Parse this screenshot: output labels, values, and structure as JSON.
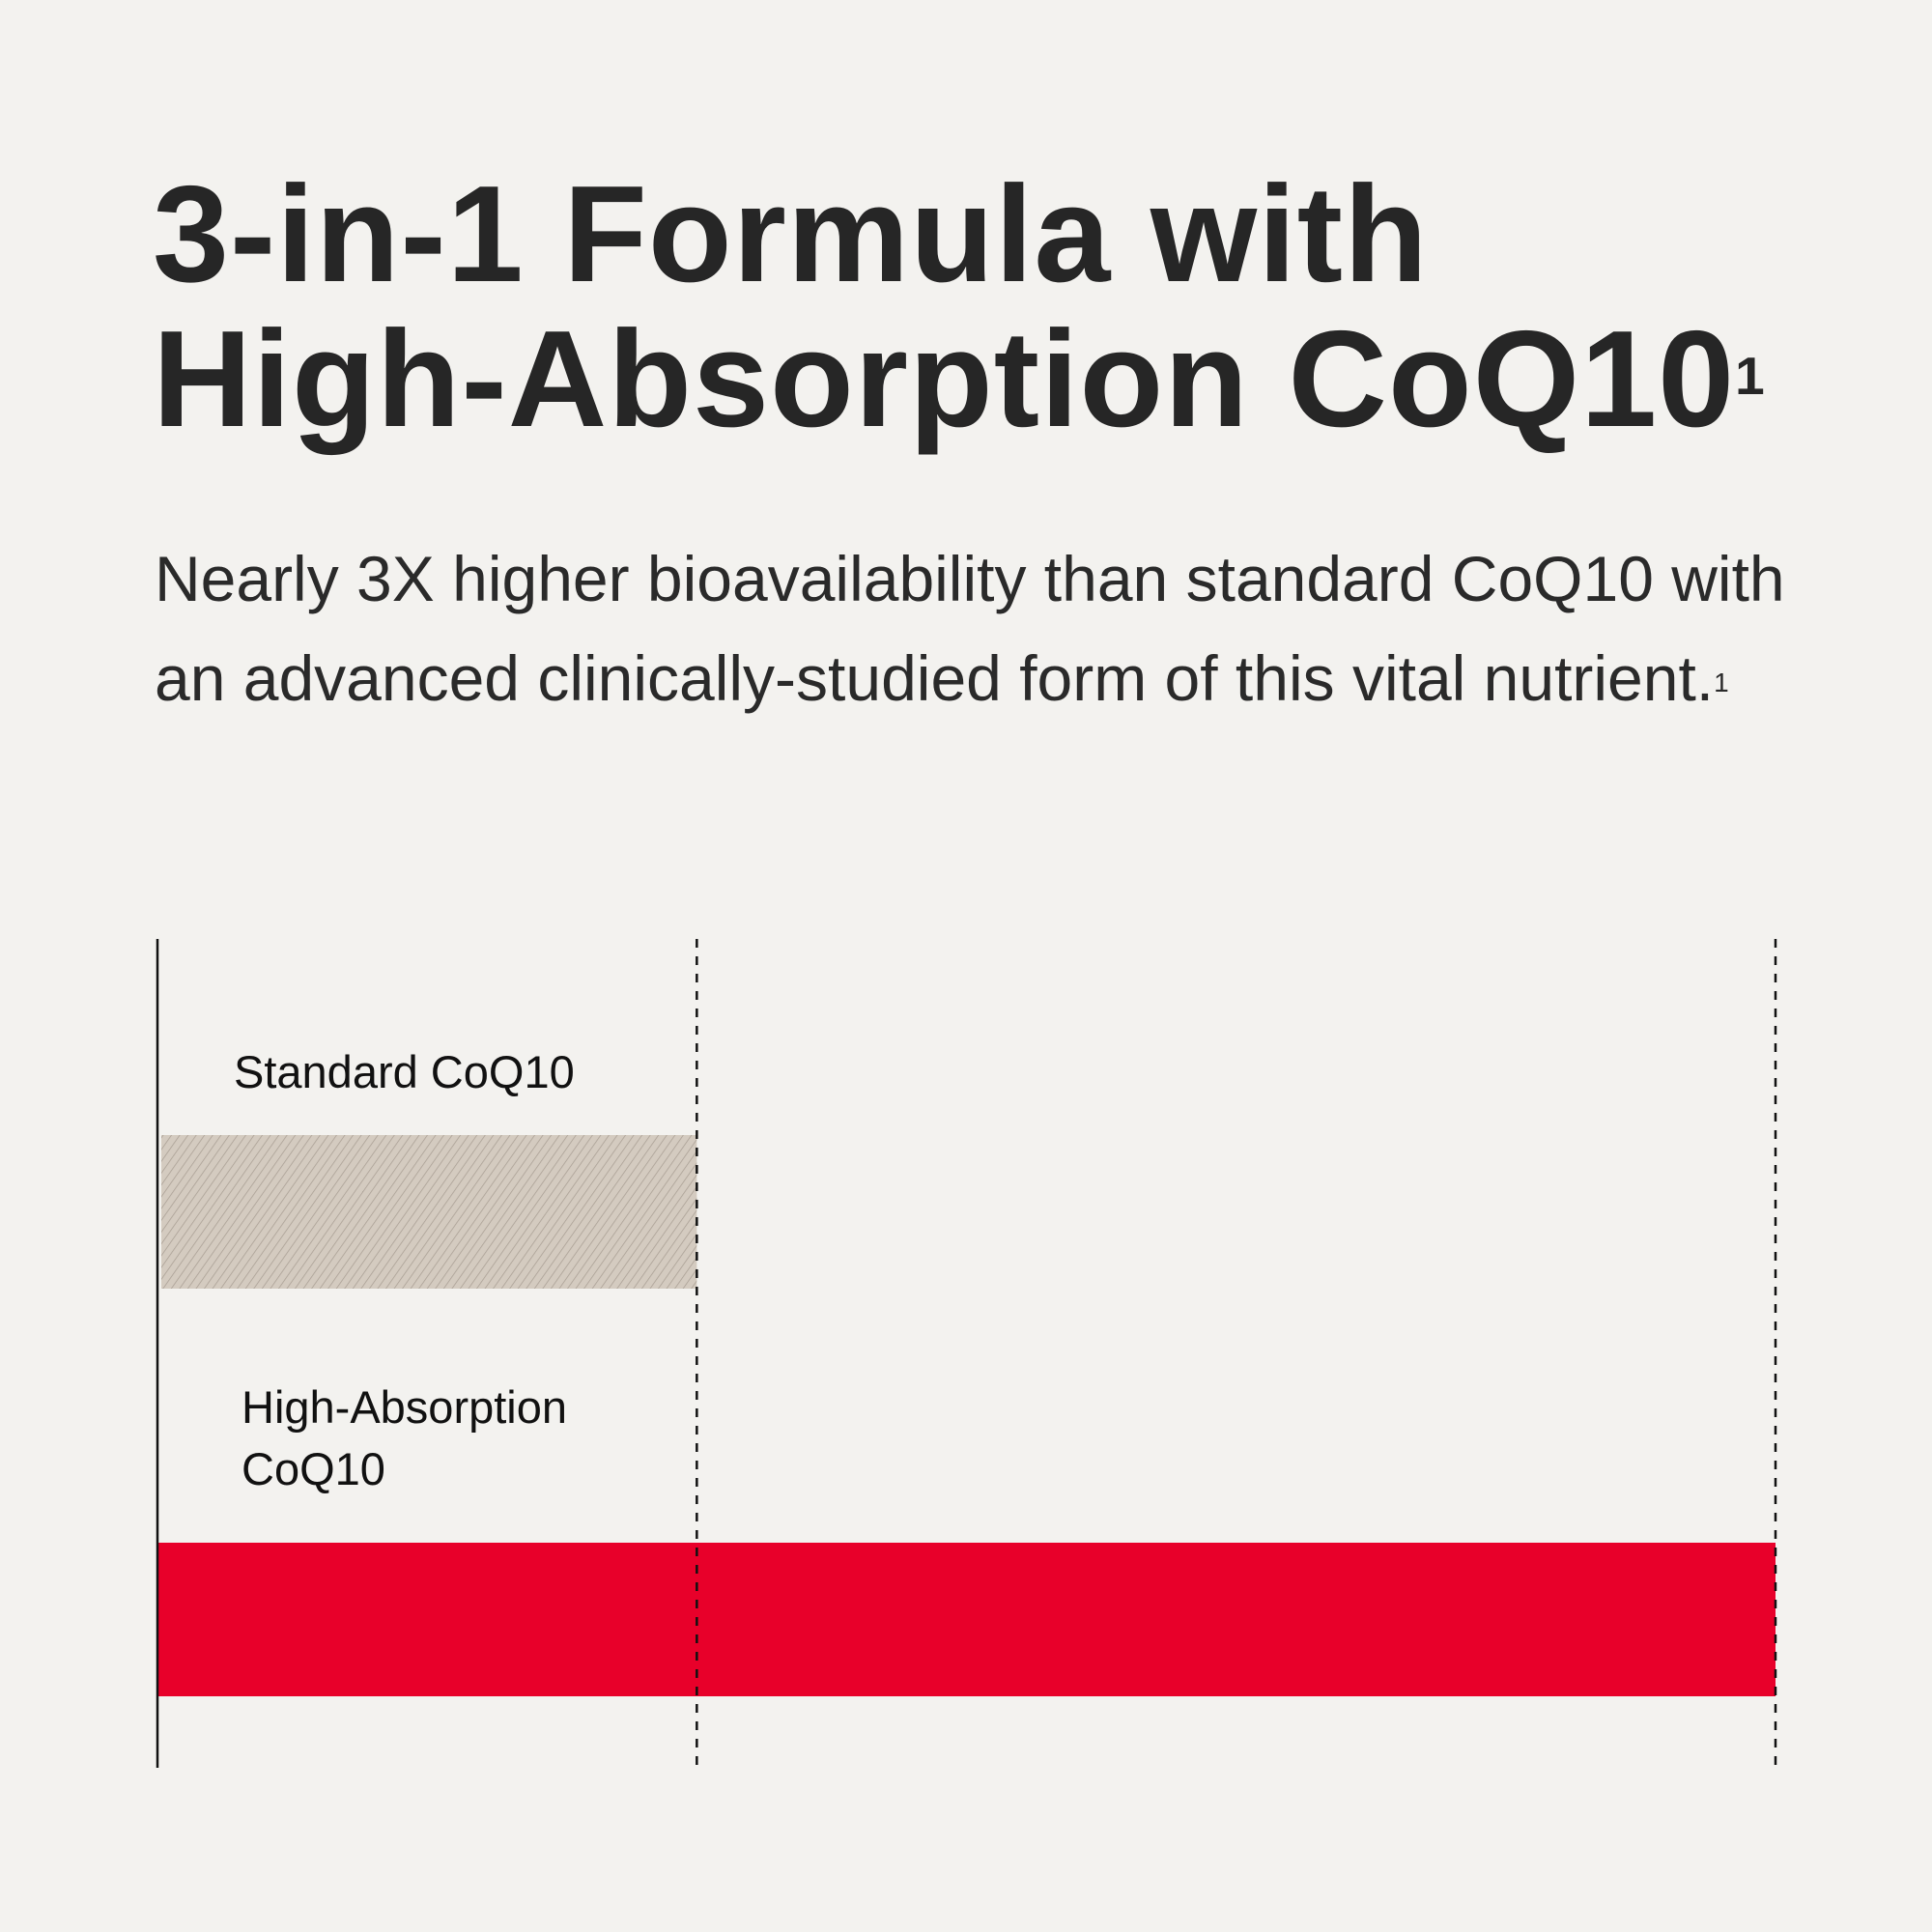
{
  "title": {
    "line1": "3-in-1 Formula with",
    "line2": "High-Absorption CoQ10",
    "footnote": "1"
  },
  "subtitle": {
    "text": "Nearly 3X higher bioavailability than standard CoQ10 with an advanced clinically-studied form of this vital nutrient.",
    "footnote": "1"
  },
  "chart_data": {
    "type": "bar",
    "orientation": "horizontal",
    "categories": [
      "Standard CoQ10",
      "High-Absorption CoQ10"
    ],
    "values": [
      1,
      3
    ],
    "xlim": [
      0,
      3
    ],
    "reference_lines": [
      1,
      3
    ],
    "grid": false,
    "colors": {
      "standard": "#D4CBC0",
      "standard_hatch": "#A89E93",
      "high": "#E8002A",
      "axis": "#111111"
    }
  }
}
